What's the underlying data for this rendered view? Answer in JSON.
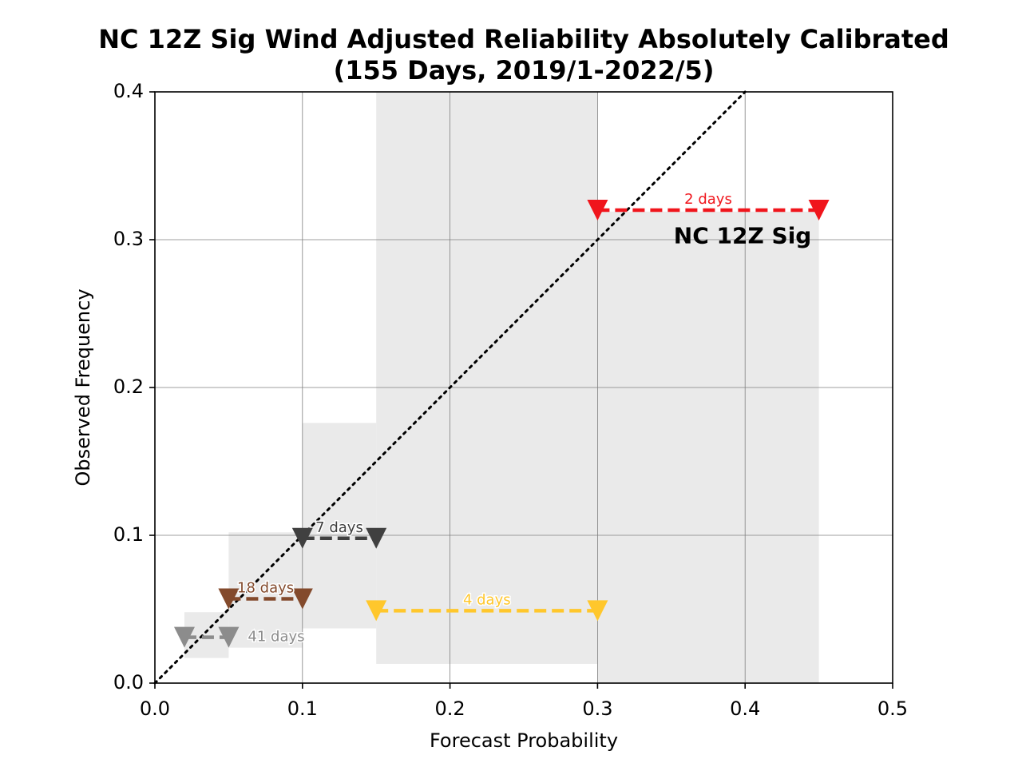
{
  "chart_data": {
    "type": "line",
    "title_lines": [
      "NC 12Z Sig Wind Adjusted Reliability Absolutely Calibrated",
      "(155 Days, 2019/1-2022/5)"
    ],
    "xlabel": "Forecast Probability",
    "ylabel": "Observed Frequency",
    "xlim": [
      0.0,
      0.5
    ],
    "ylim": [
      0.0,
      0.4
    ],
    "x_ticks": [
      "0.0",
      "0.1",
      "0.2",
      "0.3",
      "0.4",
      "0.5"
    ],
    "y_ticks": [
      "0.0",
      "0.1",
      "0.2",
      "0.3",
      "0.4"
    ],
    "grid": true,
    "diagonal": {
      "x": [
        0.0,
        0.4
      ],
      "y": [
        0.0,
        0.4
      ]
    },
    "annotation": {
      "text": "NC 12Z Sig",
      "x": 0.445,
      "y": 0.302
    },
    "uncertainty_boxes": [
      {
        "x0": 0.02,
        "x1": 0.05,
        "y0": 0.017,
        "y1": 0.048
      },
      {
        "x0": 0.05,
        "x1": 0.1,
        "y0": 0.024,
        "y1": 0.102
      },
      {
        "x0": 0.1,
        "x1": 0.15,
        "y0": 0.037,
        "y1": 0.176
      },
      {
        "x0": 0.15,
        "x1": 0.3,
        "y0": 0.013,
        "y1": 0.4
      },
      {
        "x0": 0.3,
        "x1": 0.45,
        "y0": 0.0,
        "y1": 0.319
      }
    ],
    "series": [
      {
        "x0": 0.02,
        "x1": 0.05,
        "y": 0.031,
        "days_label": "41 days",
        "color": "#8c8c8c",
        "label_x": 0.063,
        "label_y": 0.031,
        "label_anchor": "start"
      },
      {
        "x0": 0.05,
        "x1": 0.1,
        "y": 0.057,
        "days_label": "18 days",
        "color": "#834a2c",
        "label_x": 0.075,
        "label_y": 0.064,
        "label_anchor": "middle"
      },
      {
        "x0": 0.1,
        "x1": 0.15,
        "y": 0.098,
        "days_label": "7 days",
        "color": "#404040",
        "label_x": 0.125,
        "label_y": 0.105,
        "label_anchor": "middle"
      },
      {
        "x0": 0.15,
        "x1": 0.3,
        "y": 0.049,
        "days_label": "4 days",
        "color": "#ffc72c",
        "label_x": 0.225,
        "label_y": 0.056,
        "label_anchor": "middle"
      },
      {
        "x0": 0.3,
        "x1": 0.45,
        "y": 0.32,
        "days_label": "2 days",
        "color": "#f0151c",
        "label_x": 0.375,
        "label_y": 0.327,
        "label_anchor": "middle"
      }
    ]
  }
}
